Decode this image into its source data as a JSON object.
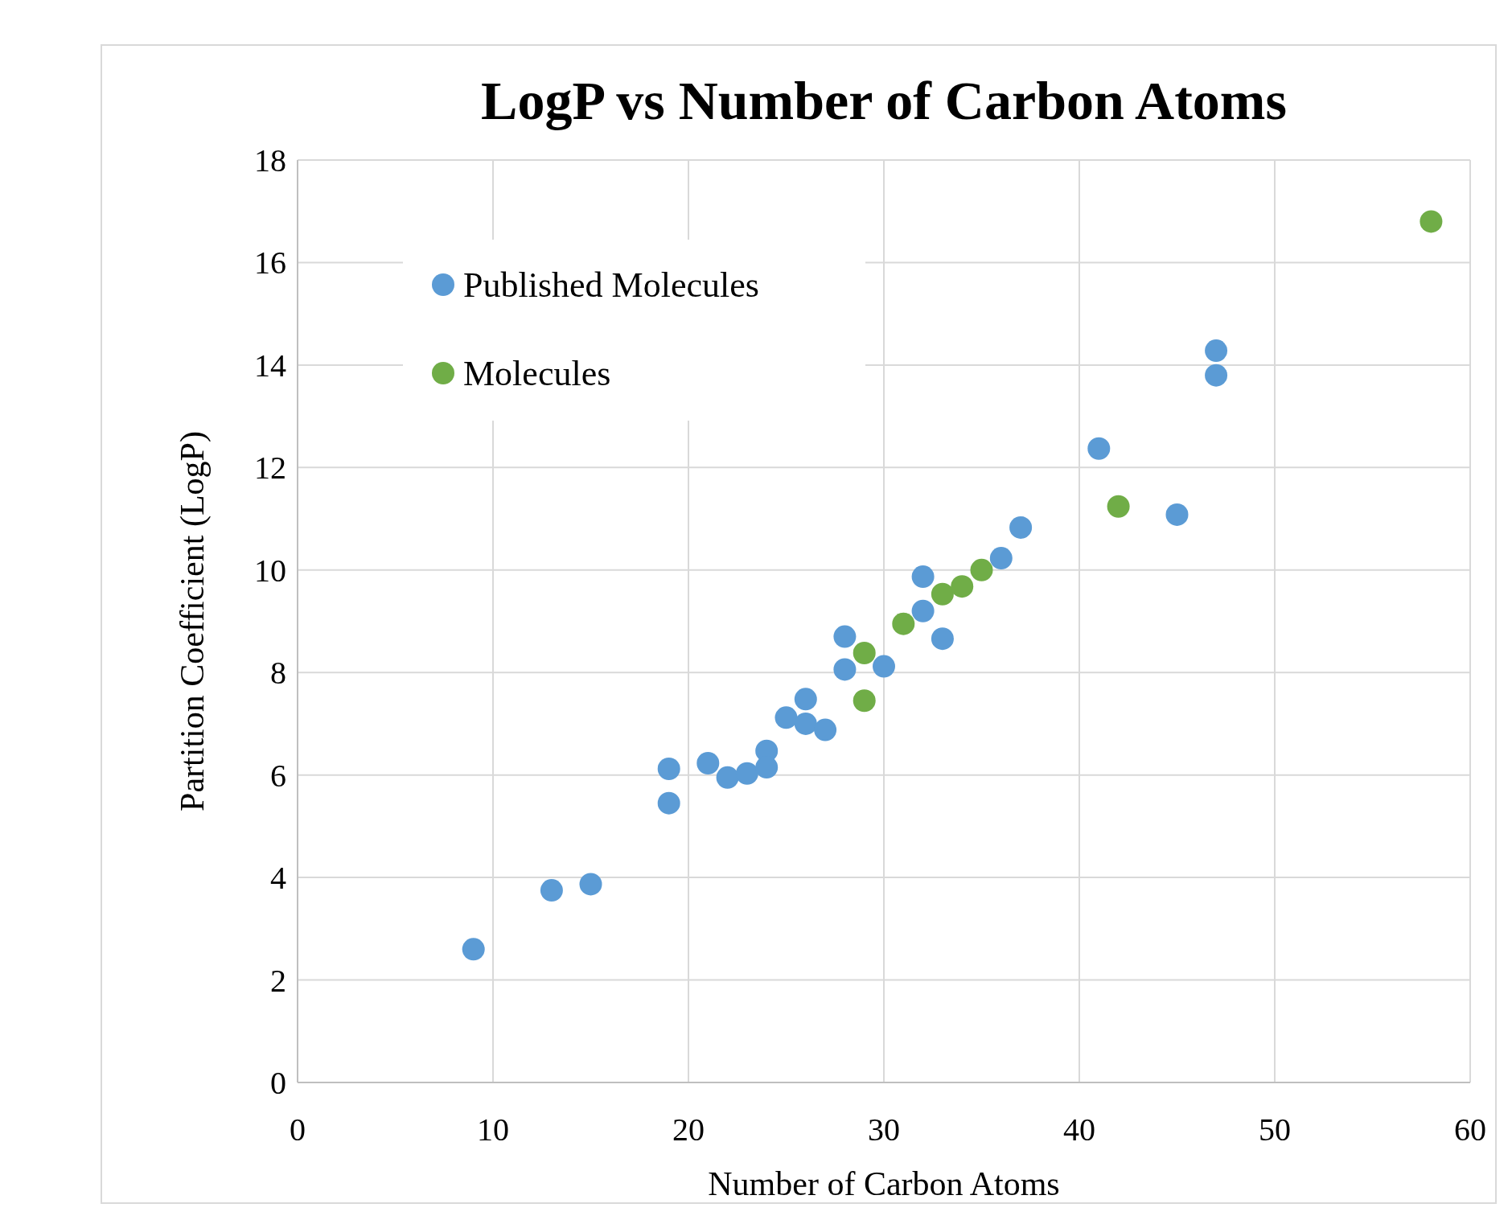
{
  "chart_data": {
    "type": "scatter",
    "title": "LogP vs Number of Carbon Atoms",
    "xlabel": "Number of Carbon Atoms",
    "ylabel": "Partition Coefficient (LogP)",
    "series": [
      {
        "name": "Published Molecules",
        "color": "#5b9bd5",
        "x": [
          9,
          13,
          15,
          19,
          19,
          21,
          22,
          23,
          24,
          24,
          25,
          26,
          26,
          27,
          28,
          28,
          30,
          32,
          32,
          33,
          36,
          37,
          41,
          45,
          47,
          47
        ],
        "values": [
          2.6,
          3.75,
          3.87,
          6.12,
          5.45,
          6.23,
          5.95,
          6.03,
          6.47,
          6.15,
          7.12,
          7.48,
          7.0,
          6.88,
          8.7,
          8.06,
          8.12,
          9.87,
          9.2,
          8.66,
          10.23,
          10.83,
          12.37,
          11.08,
          14.28,
          13.8
        ]
      },
      {
        "name": "Molecules",
        "color": "#70ad47",
        "x": [
          29,
          29,
          31,
          33,
          34,
          35,
          42,
          58
        ],
        "values": [
          8.38,
          7.45,
          8.95,
          9.53,
          9.68,
          10.0,
          11.24,
          16.8
        ]
      }
    ],
    "xlim": [
      0,
      60
    ],
    "xticks": [
      0,
      10,
      20,
      30,
      40,
      50,
      60
    ],
    "ylim": [
      0,
      18
    ],
    "yticks": [
      0,
      2,
      4,
      6,
      8,
      10,
      12,
      14,
      16,
      18
    ],
    "grid": true,
    "legend": "top left",
    "marker": "circle"
  }
}
